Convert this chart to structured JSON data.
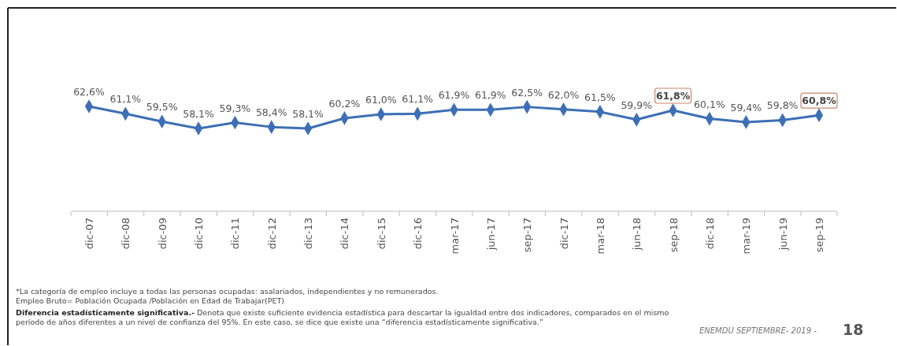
{
  "chart_data": {
    "type": "line",
    "categories": [
      "dic-07",
      "dic-08",
      "dic-09",
      "dic-10",
      "dic-11",
      "dic-12",
      "dic-13",
      "dic-14",
      "dic-15",
      "dic-16",
      "mar-17",
      "jun-17",
      "sep-17",
      "dic-17",
      "mar-18",
      "jun-18",
      "sep-18",
      "dic-18",
      "mar-19",
      "jun-19",
      "sep-19"
    ],
    "values": [
      62.6,
      61.1,
      59.5,
      58.1,
      59.3,
      58.4,
      58.1,
      60.2,
      61.0,
      61.1,
      61.9,
      61.9,
      62.5,
      62.0,
      61.5,
      59.9,
      61.8,
      60.1,
      59.4,
      59.8,
      60.8
    ],
    "value_labels": [
      "62,6%",
      "61,1%",
      "59,5%",
      "58,1%",
      "59,3%",
      "58,4%",
      "58,1%",
      "60,2%",
      "61,0%",
      "61,1%",
      "61,9%",
      "61,9%",
      "62,5%",
      "62,0%",
      "61,5%",
      "59,9%",
      null,
      "60,1%",
      "59,4%",
      "59,8%",
      null
    ],
    "color": "#3d6fb6",
    "marker": "diamond",
    "tick_labels": "x",
    "annotations": [
      "*La categoría de empleo incluye a todas las personas ocupadas: asalariados, independientes y no remunerados.",
      "Empleo Bruto= Población Ocupada /Población en Edad de Trabajar(PET)",
      "Diferencia estadísticamente significativa.-",
      "Denota que existe suficiente evidencia estadística para descartar la igualdad entre dos indicadores, comparados en el mismo período de años diferentes a un nivel de confianza del 95%. En este caso, se dice que existe una “diferencia estadísticamente significativa.”",
      "ENEMDU SEPTIEMBRE- 2019 -",
      "18",
      {
        "text": "61,8%",
        "x": "sep-18",
        "y": 61.8
      },
      {
        "text": "60,8%",
        "x": "sep-19",
        "y": 60.8
      }
    ]
  }
}
